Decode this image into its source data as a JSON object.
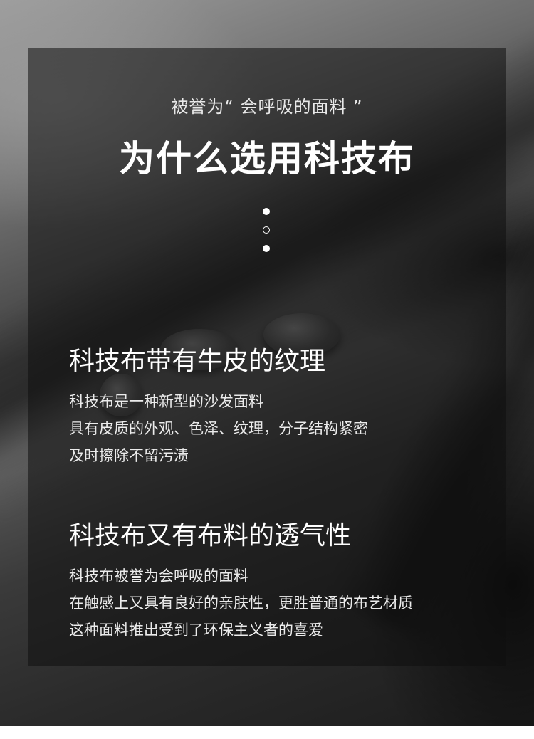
{
  "header": {
    "subtitle": "被誉为“ 会呼吸的面料 ”",
    "title": "为什么选用科技布"
  },
  "divider_dots": [
    "filled",
    "hollow",
    "filled"
  ],
  "sections": [
    {
      "heading": "科技布带有牛皮的纹理",
      "lines": [
        "科技布是一种新型的沙发面料",
        "具有皮质的外观、色泽、纹理，分子结构紧密",
        "及时擦除不留污渍"
      ]
    },
    {
      "heading": "科技布又有布料的透气性",
      "lines": [
        "科技布被誉为会呼吸的面料",
        "在触感上又具有良好的亲肤性，更胜普通的布艺材质",
        "这种面料推出受到了环保主义者的喜爱"
      ]
    }
  ],
  "colors": {
    "panel": "#0f0f0f",
    "text": "#ffffff",
    "body_text": "#ebebeb"
  }
}
